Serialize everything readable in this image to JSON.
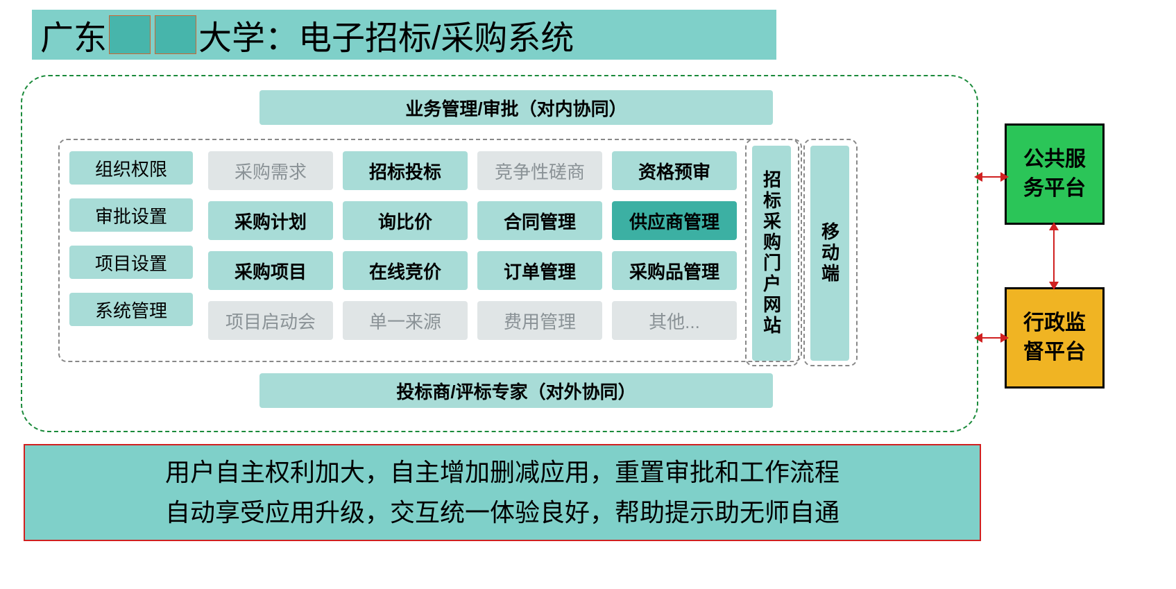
{
  "title": {
    "prefix": "广东",
    "suffix": "大学：电子招标/采购系统"
  },
  "bands": {
    "top": "业务管理/审批（对内协同）",
    "bottom": "投标商/评标专家（对外协同）"
  },
  "left_col": [
    "组织权限",
    "审批设置",
    "项目设置",
    "系统管理"
  ],
  "grid": [
    {
      "label": "采购需求",
      "style": "gray"
    },
    {
      "label": "招标投标",
      "style": "teal"
    },
    {
      "label": "竞争性磋商",
      "style": "gray"
    },
    {
      "label": "资格预审",
      "style": "teal"
    },
    {
      "label": "采购计划",
      "style": "teal"
    },
    {
      "label": "询比价",
      "style": "teal"
    },
    {
      "label": "合同管理",
      "style": "teal"
    },
    {
      "label": "供应商管理",
      "style": "dark"
    },
    {
      "label": "采购项目",
      "style": "teal"
    },
    {
      "label": "在线竞价",
      "style": "teal"
    },
    {
      "label": "订单管理",
      "style": "teal"
    },
    {
      "label": "采购品管理",
      "style": "teal"
    },
    {
      "label": "项目启动会",
      "style": "gray"
    },
    {
      "label": "单一来源",
      "style": "gray"
    },
    {
      "label": "费用管理",
      "style": "gray"
    },
    {
      "label": "其他...",
      "style": "gray"
    }
  ],
  "vertical_cols": {
    "portal": "招标采购门户网站",
    "mobile": "移动端"
  },
  "right_boxes": {
    "green": "公共服务平台",
    "orange": "行政监督平台"
  },
  "footer": {
    "line1": "用户自主权利加大，自主增加删减应用，重置审批和工作流程",
    "line2": "自动享受应用升级，交互统一体验良好，帮助提示助无师自通"
  },
  "colors": {
    "teal_light": "#a8dcd7",
    "teal_mid": "#7fd0c9",
    "teal_dark": "#3cb0a3",
    "gray_cell": "#e0e5e6",
    "gray_text": "#8a9296",
    "green": "#2bc558",
    "orange": "#f0b423",
    "red": "#d02020",
    "dash_green": "#1a8a3a"
  }
}
